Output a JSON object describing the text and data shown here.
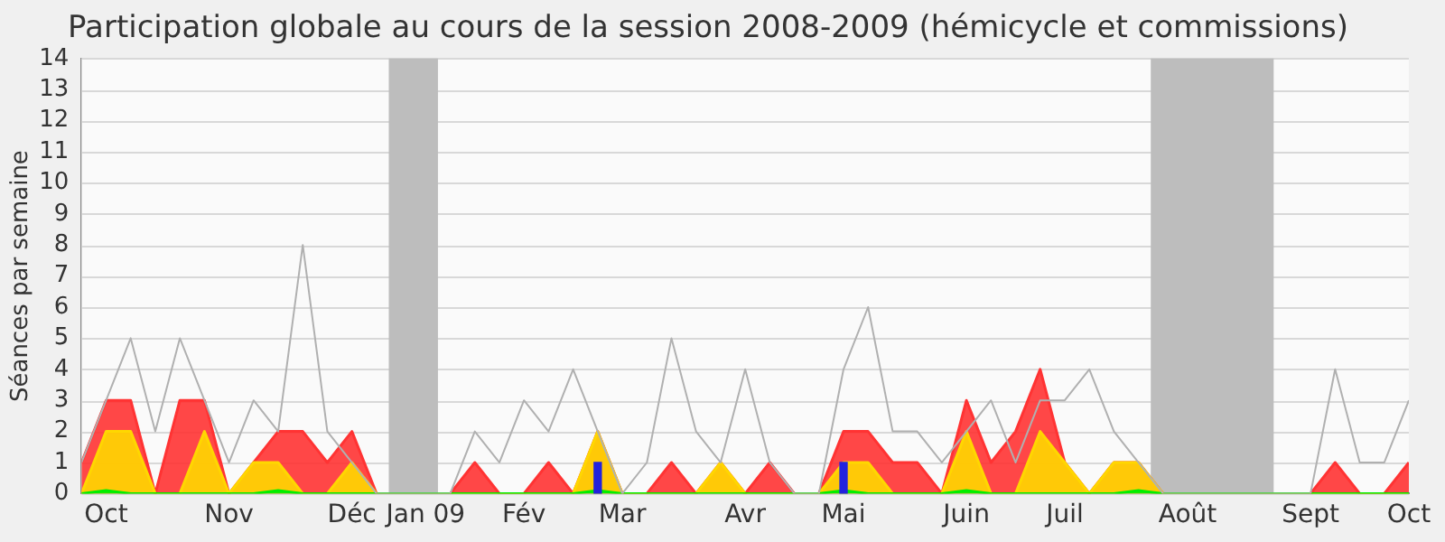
{
  "chart_data": {
    "type": "area",
    "title": "Participation globale au cours de la session 2008-2009 (hémicycle et commissions)",
    "ylabel": "Séances par semaine",
    "categories": [
      null,
      "Oct",
      null,
      null,
      null,
      null,
      "Nov",
      null,
      null,
      null,
      null,
      "Déc",
      null,
      null,
      "Jan 09",
      null,
      null,
      null,
      "Fév",
      null,
      null,
      null,
      "Mar",
      null,
      null,
      null,
      null,
      "Avr",
      null,
      null,
      null,
      "Mai",
      null,
      null,
      null,
      null,
      "Juin",
      null,
      null,
      null,
      "Juil",
      null,
      null,
      null,
      null,
      "Août",
      null,
      null,
      null,
      null,
      "Sept",
      null,
      null,
      null,
      "Oct"
    ],
    "ylim": [
      0,
      14
    ],
    "yticks": [
      0,
      1,
      2,
      3,
      4,
      5,
      6,
      7,
      8,
      9,
      10,
      11,
      12,
      13,
      14
    ],
    "grid": "y",
    "legend": false,
    "series": [
      {
        "color": "#ff3333",
        "values": [
          1,
          3,
          3,
          0,
          3,
          3,
          0,
          1,
          2,
          2,
          1,
          2,
          0,
          0,
          0,
          0,
          1,
          0,
          0,
          1,
          0,
          2,
          0,
          0,
          1,
          0,
          1,
          0,
          1,
          0,
          0,
          2,
          2,
          1,
          1,
          0,
          3,
          1,
          2,
          4,
          1,
          0,
          1,
          1,
          0,
          0,
          0,
          0,
          0,
          0,
          0,
          1,
          0,
          0,
          1
        ]
      },
      {
        "color": "#ffd700",
        "values": [
          0,
          2,
          2,
          0,
          0,
          2,
          0,
          1,
          1,
          0,
          0,
          1,
          0,
          0,
          0,
          0,
          0,
          0,
          0,
          0,
          0,
          2,
          0,
          0,
          0,
          0,
          1,
          0,
          0,
          0,
          0,
          1,
          1,
          0,
          0,
          0,
          2,
          0,
          0,
          2,
          1,
          0,
          1,
          1,
          0,
          0,
          0,
          0,
          0,
          0,
          0,
          0,
          0,
          0,
          0
        ]
      },
      {
        "color": "#00ee00",
        "values": [
          0,
          0.1,
          0,
          0,
          0,
          0,
          0,
          0,
          0.1,
          0,
          0,
          0,
          0,
          0,
          0,
          0,
          0,
          0,
          0,
          0,
          0,
          0.1,
          0,
          0,
          0,
          0,
          0,
          0,
          0,
          0,
          0,
          0.1,
          0,
          0,
          0,
          0,
          0.1,
          0,
          0,
          0,
          0,
          0,
          0,
          0.1,
          0,
          0,
          0,
          0,
          0,
          0,
          0,
          0,
          0,
          0,
          0
        ]
      },
      {
        "type": "bar",
        "color": "#2222dd",
        "values": [
          null,
          null,
          null,
          null,
          null,
          null,
          null,
          null,
          null,
          null,
          null,
          null,
          null,
          null,
          null,
          null,
          null,
          null,
          null,
          null,
          null,
          1,
          null,
          null,
          null,
          null,
          null,
          null,
          null,
          null,
          null,
          1,
          null,
          null,
          null,
          null,
          null,
          null,
          null,
          null,
          null,
          null,
          null,
          null,
          null,
          null,
          null,
          null,
          null,
          null,
          null,
          null,
          null,
          null,
          null
        ]
      },
      {
        "type": "line",
        "color": "#b0b0b0",
        "values": [
          1,
          3,
          5,
          2,
          5,
          3,
          1,
          3,
          2,
          8,
          2,
          1,
          0,
          0,
          0,
          0,
          2,
          1,
          3,
          2,
          4,
          2,
          0,
          1,
          5,
          2,
          1,
          4,
          1,
          0,
          0,
          4,
          6,
          2,
          2,
          1,
          2,
          3,
          1,
          3,
          3,
          4,
          2,
          1,
          0,
          0,
          0,
          0,
          0,
          0,
          0,
          4,
          1,
          1,
          3
        ]
      }
    ]
  }
}
